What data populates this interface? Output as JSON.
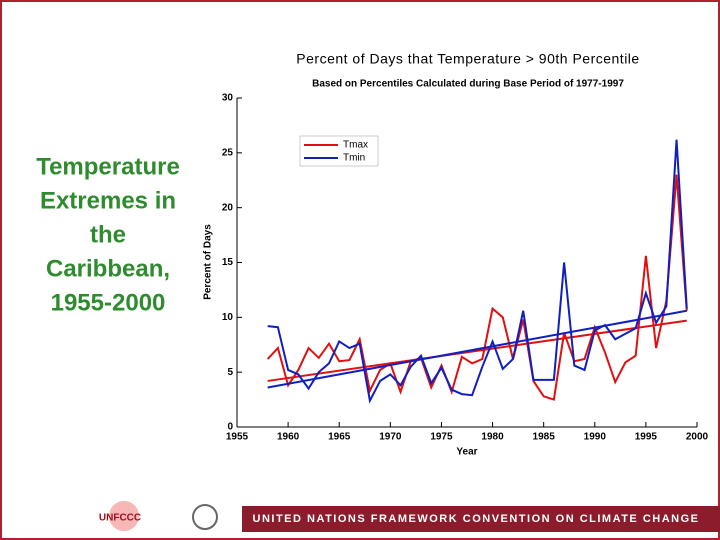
{
  "slide": {
    "title": [
      "Temperature",
      "Extremes in",
      "the",
      "Caribbean,",
      "1955-2000"
    ],
    "footer": "UNITED NATIONS FRAMEWORK CONVENTION ON CLIMATE CHANGE",
    "logo": "UNFCCC"
  },
  "chart_data": {
    "type": "line",
    "title": "Percent of Days that Temperature > 90th Percentile",
    "subtitle": "Based on Percentiles Calculated during Base Period of 1977-1997",
    "x_label": "Year",
    "y_label": "Percent of Days",
    "x": [
      1958,
      1959,
      1960,
      1961,
      1962,
      1963,
      1964,
      1965,
      1966,
      1967,
      1968,
      1969,
      1970,
      1971,
      1972,
      1973,
      1974,
      1975,
      1976,
      1977,
      1978,
      1979,
      1980,
      1981,
      1982,
      1983,
      1984,
      1985,
      1986,
      1987,
      1988,
      1989,
      1990,
      1991,
      1992,
      1993,
      1994,
      1995,
      1996,
      1997,
      1998,
      1999
    ],
    "trend_x": [
      1958,
      1999
    ],
    "series": [
      {
        "name": "Tmax",
        "color": "#e01010",
        "values": [
          6.2,
          7.2,
          3.8,
          5.2,
          7.2,
          6.3,
          7.6,
          6.0,
          6.1,
          8.0,
          3.3,
          5.2,
          5.8,
          3.2,
          6.0,
          6.3,
          3.6,
          5.6,
          3.2,
          6.4,
          5.8,
          6.2,
          10.8,
          10.0,
          6.2,
          9.8,
          4.2,
          2.8,
          2.5,
          8.6,
          6.0,
          6.2,
          9.1,
          6.8,
          4.1,
          5.9,
          6.5,
          15.6,
          7.2,
          11.5,
          23.0,
          10.6
        ],
        "trend": [
          4.2,
          9.7
        ]
      },
      {
        "name": "Tmin",
        "color": "#1020c0",
        "values": [
          9.2,
          9.1,
          5.2,
          4.8,
          3.5,
          5.0,
          5.8,
          7.8,
          7.2,
          7.6,
          2.4,
          4.2,
          4.8,
          3.8,
          5.5,
          6.5,
          4.0,
          5.4,
          3.4,
          3.0,
          2.9,
          5.5,
          7.8,
          5.3,
          6.2,
          10.6,
          4.3,
          4.3,
          4.3,
          15.0,
          5.6,
          5.2,
          8.8,
          9.3,
          8.0,
          8.5,
          9.0,
          12.2,
          9.5,
          11.0,
          26.2,
          10.8
        ],
        "trend": [
          3.6,
          10.6
        ]
      }
    ],
    "xlim": [
      1955,
      2000
    ],
    "xticks": [
      1955,
      1960,
      1965,
      1970,
      1975,
      1980,
      1985,
      1990,
      1995,
      2000
    ],
    "ylim": [
      0,
      30
    ],
    "yticks": [
      0,
      5,
      10,
      15,
      20,
      25,
      30
    ]
  }
}
